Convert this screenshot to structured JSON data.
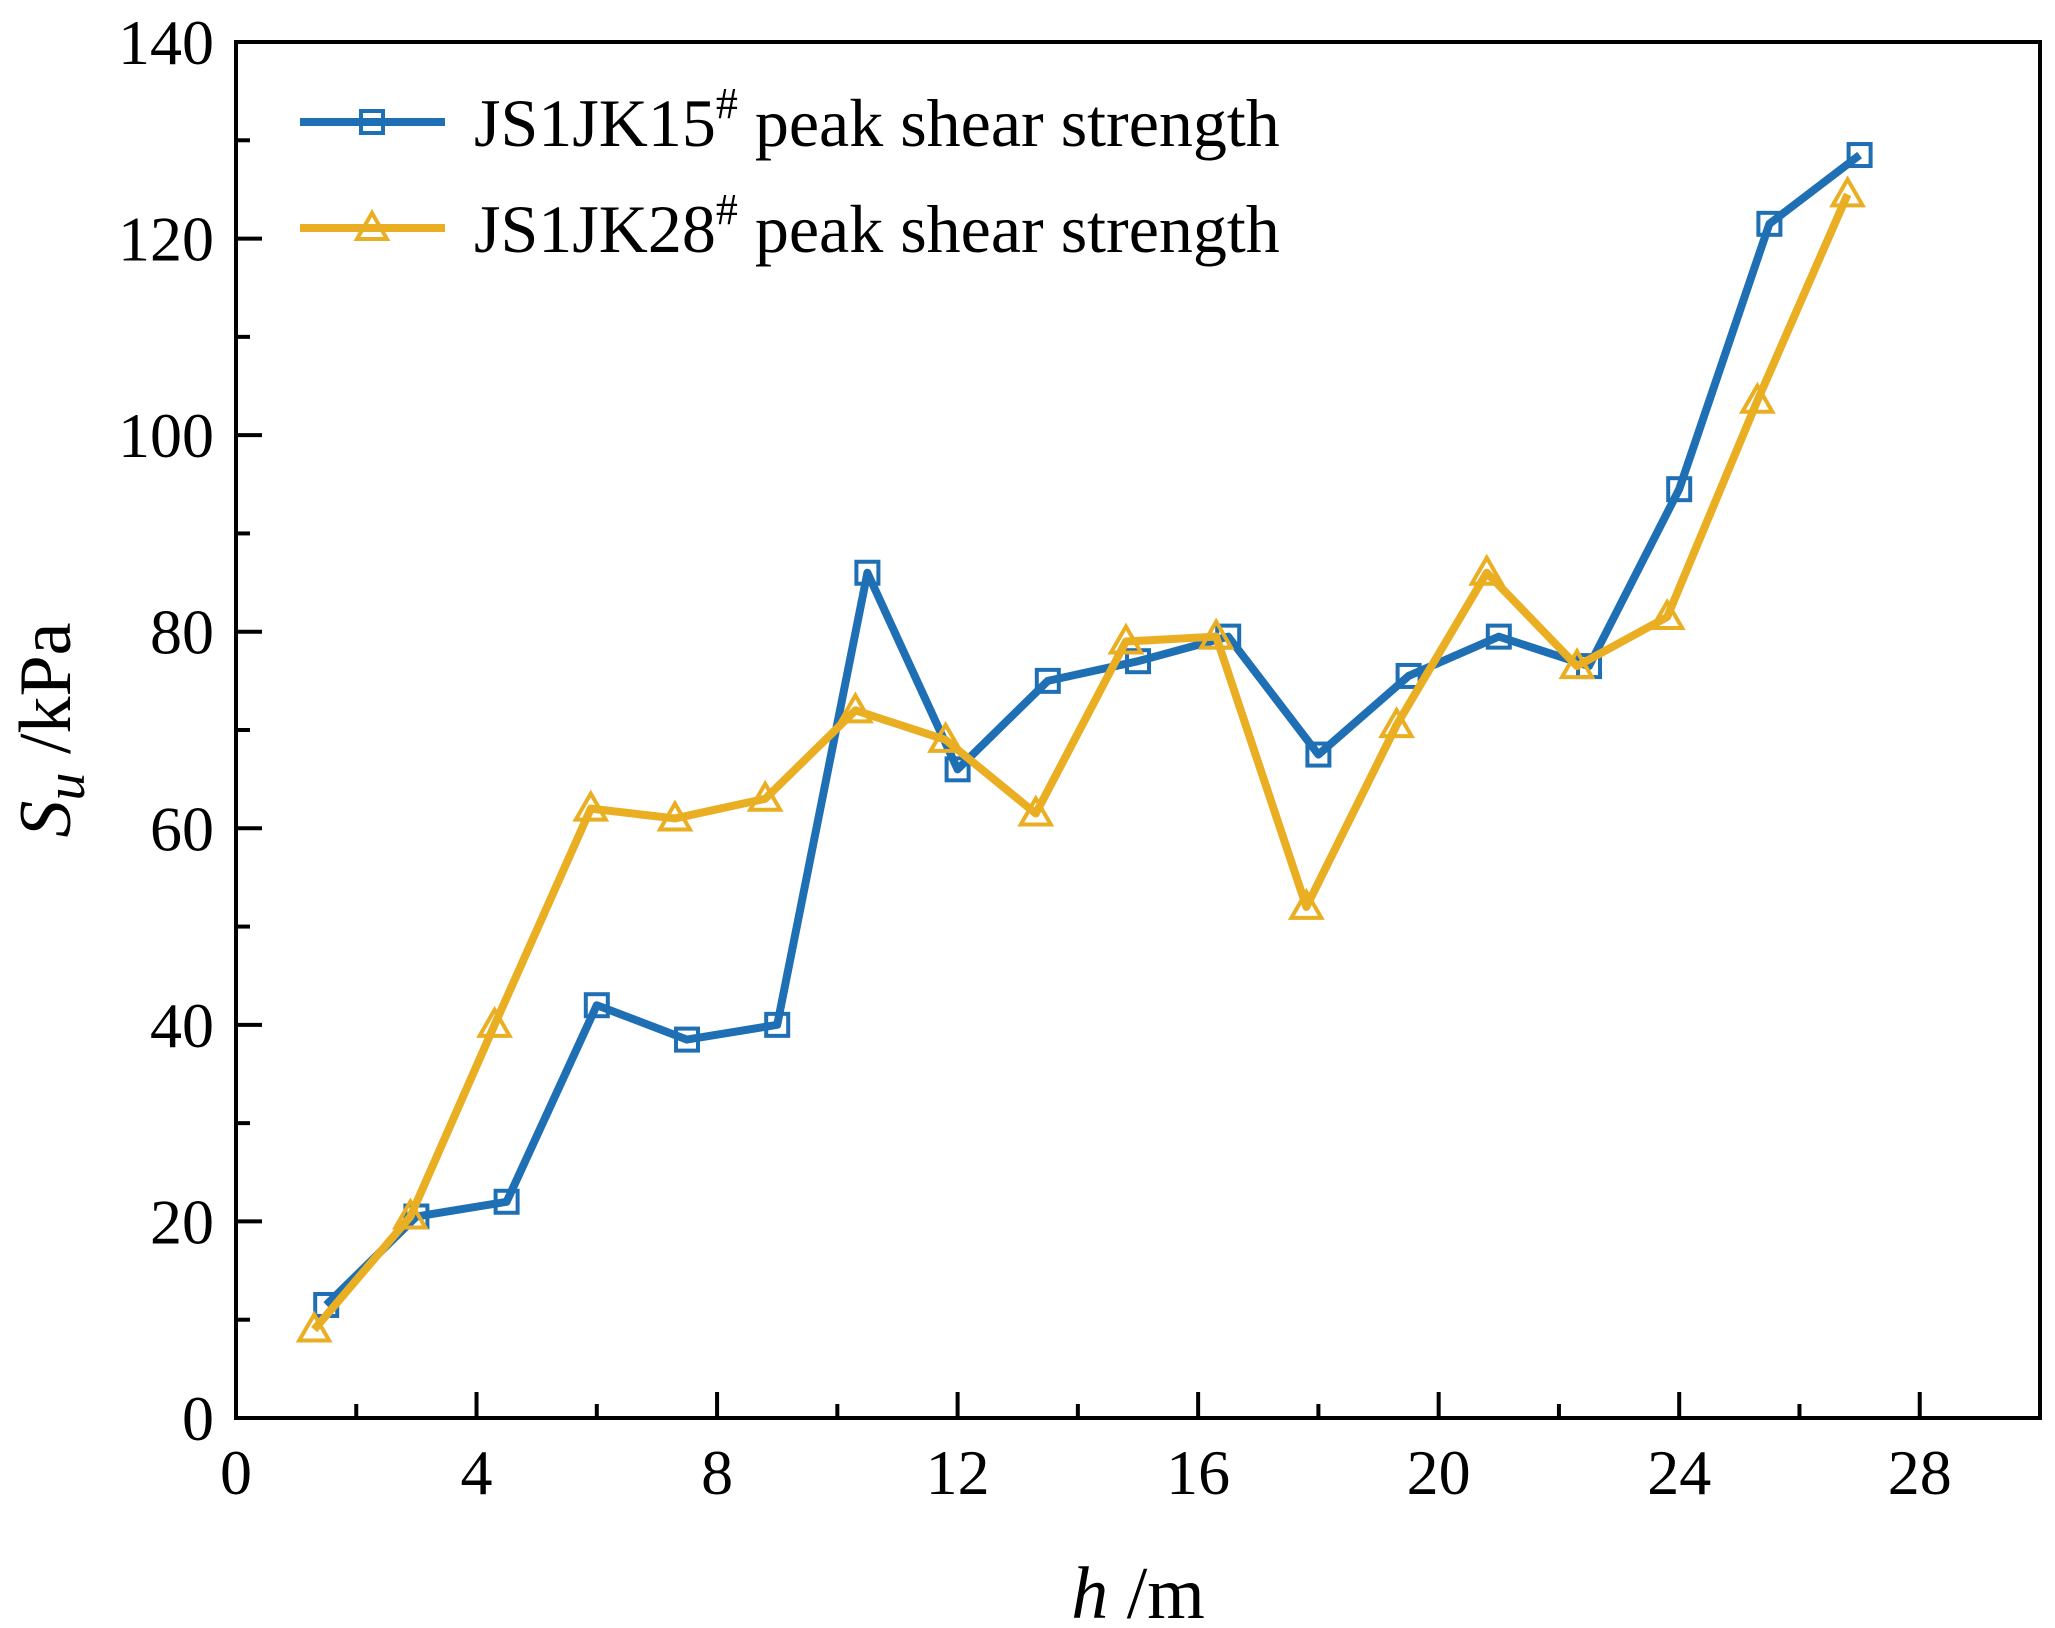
{
  "chart_data": {
    "type": "line",
    "xlabel": {
      "var": "h",
      "unit": " /m"
    },
    "ylabel": {
      "var": "S",
      "sub": "u",
      "unit": " /kPa"
    },
    "xlim": [
      0,
      30
    ],
    "ylim": [
      0,
      140
    ],
    "xticks": [
      0,
      4,
      8,
      12,
      16,
      20,
      24,
      28
    ],
    "yticks": [
      0,
      20,
      40,
      60,
      80,
      100,
      120,
      140
    ],
    "xtick_labels": [
      "0",
      "4",
      "8",
      "12",
      "16",
      "20",
      "24",
      "28"
    ],
    "ytick_labels": [
      "0",
      "20",
      "40",
      "60",
      "80",
      "100",
      "120",
      "140"
    ],
    "x_minor_step": 2,
    "y_minor_step": 10,
    "grid": false,
    "legend_position": "top-left",
    "series": [
      {
        "name": "JS1JK15",
        "name_sup": "#",
        "name_suffix": " peak shear strength",
        "color": "#1f6fb5",
        "marker": "square",
        "x": [
          1.5,
          3.0,
          4.5,
          6.0,
          7.5,
          9.0,
          10.5,
          12.0,
          13.5,
          15.0,
          16.5,
          18.0,
          19.5,
          21.0,
          22.5,
          24.0,
          25.5,
          27.0
        ],
        "y": [
          11.5,
          20.5,
          22,
          42,
          38.5,
          40,
          86,
          66,
          75,
          77,
          79.5,
          67.5,
          75.5,
          79.5,
          76.5,
          94.5,
          121.5,
          128.5
        ]
      },
      {
        "name": "JS1JK28",
        "name_sup": "#",
        "name_suffix": " peak shear strength",
        "color": "#eaae23",
        "marker": "triangle",
        "x": [
          1.3,
          2.9,
          4.3,
          5.9,
          7.3,
          8.8,
          10.3,
          11.8,
          13.3,
          14.8,
          16.3,
          17.8,
          19.3,
          20.8,
          22.3,
          23.8,
          25.3,
          26.8
        ],
        "y": [
          9,
          20.5,
          40,
          62,
          61,
          63,
          72,
          69,
          61.5,
          79,
          79.5,
          52,
          70.5,
          86,
          76.5,
          81.5,
          103.5,
          124.5
        ]
      }
    ]
  }
}
